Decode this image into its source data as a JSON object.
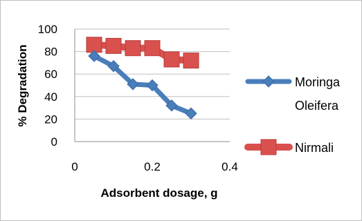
{
  "chart_data": {
    "type": "line",
    "title": "",
    "xlabel": "Adsorbent dosage, g",
    "ylabel": "% Degradation",
    "xlim": [
      0,
      0.4
    ],
    "ylim": [
      0,
      100
    ],
    "x_ticks": [
      "0",
      "0.2",
      "0.4"
    ],
    "y_ticks": [
      "0",
      "20",
      "40",
      "60",
      "80",
      "100"
    ],
    "grid": "horizontal",
    "legend_position": "right",
    "series": [
      {
        "name": "Moringa Oleifera",
        "name_lines": [
          "Moringa",
          "Oleifera"
        ],
        "color": "#4a7ebb",
        "marker": "diamond",
        "x": [
          0.05,
          0.1,
          0.15,
          0.2,
          0.25,
          0.3
        ],
        "y": [
          76,
          67,
          51,
          50,
          32,
          25
        ]
      },
      {
        "name": "Nirmali",
        "name_lines": [
          "Nirmali"
        ],
        "color": "#d9514e",
        "marker": "square",
        "x": [
          0.05,
          0.1,
          0.15,
          0.2,
          0.25,
          0.3
        ],
        "y": [
          86,
          85,
          83,
          83,
          73,
          72
        ]
      }
    ]
  }
}
